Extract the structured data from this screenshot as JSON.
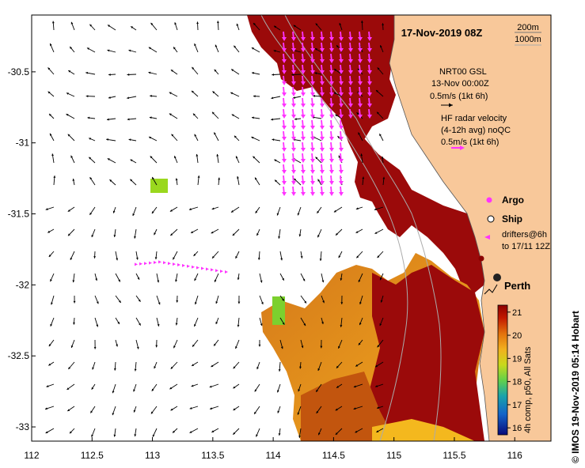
{
  "title": "17-Nov-2019 08Z",
  "isobaths": [
    "200m",
    "1000m"
  ],
  "gsl_legend": {
    "line1": "NRT00 GSL",
    "line2": "13-Nov 00:00Z",
    "scale": "0.5m/s (1kt 6h)"
  },
  "radar_legend": {
    "line1": "HF radar velocity",
    "line2": "(4-12h avg) noQC",
    "scale": "0.5m/s (1kt 6h)"
  },
  "markers": {
    "argo": "Argo",
    "ship": "Ship",
    "drifters_line1": "drifters@6h",
    "drifters_line2": "to 17/11 12Z"
  },
  "city": "Perth",
  "colorbar": {
    "ticks": [
      "21",
      "20",
      "19",
      "18",
      "17",
      "16"
    ],
    "label": "4h comp, p50, All Sats",
    "range": [
      15.7,
      21.3
    ]
  },
  "credit": "© IMOS 19-Nov-2019 05:14 Hobart",
  "axes": {
    "x_ticks": [
      "112",
      "112.5",
      "113",
      "113.5",
      "114",
      "114.5",
      "115",
      "115.5",
      "116"
    ],
    "y_ticks": [
      "-30.5",
      "-31",
      "-31.5",
      "-32",
      "-32.5",
      "-33"
    ],
    "lon_range": [
      112,
      116.3
    ],
    "lat_range": [
      -33.1,
      -30.1
    ]
  },
  "colors": {
    "land": "#f8c89a",
    "hot_sst": "#9b0a0a",
    "radar_arrow": "#ff33ff",
    "ocean_background": "#ffffff"
  }
}
